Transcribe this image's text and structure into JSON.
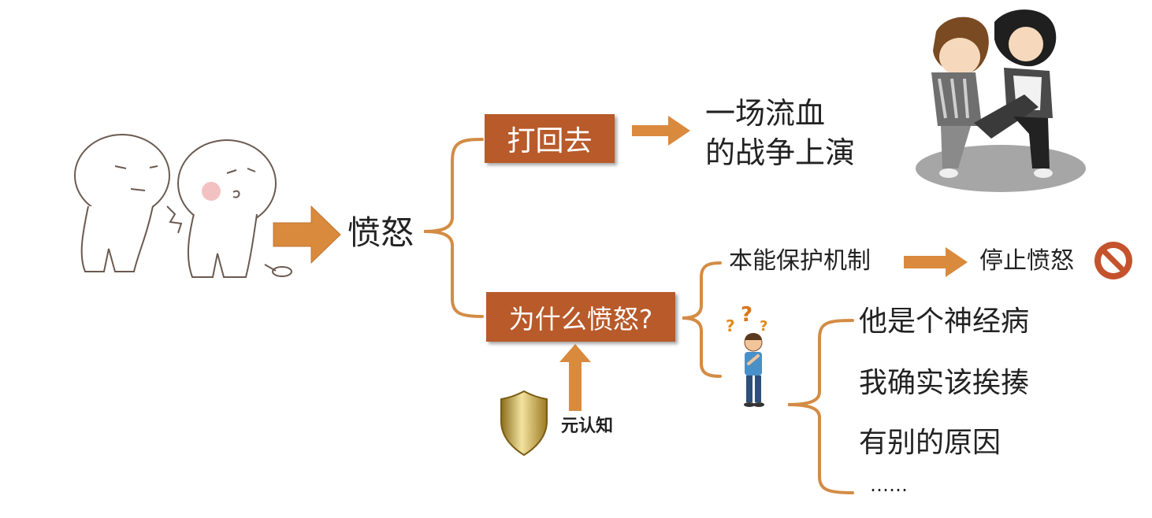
{
  "nodes": {
    "root": "愤怒",
    "fight_back": "打回去",
    "war_line1": "一场流血",
    "war_line2": "的战争上演",
    "why_angry": "为什么愤怒?",
    "instinct": "本能保护机制",
    "stop_anger": "停止愤怒",
    "metacognition": "元认知"
  },
  "reasons": [
    "他是个神经病",
    "我确实该挨揍",
    "有别的原因",
    "……"
  ],
  "colors": {
    "accent": "#b85a2a",
    "arrow": "#d98a3d",
    "line": "#d38c45",
    "text": "#222222"
  },
  "icons": {
    "stop": "no-entry-icon",
    "shield": "shield-icon",
    "thinker": "question-person-icon"
  }
}
